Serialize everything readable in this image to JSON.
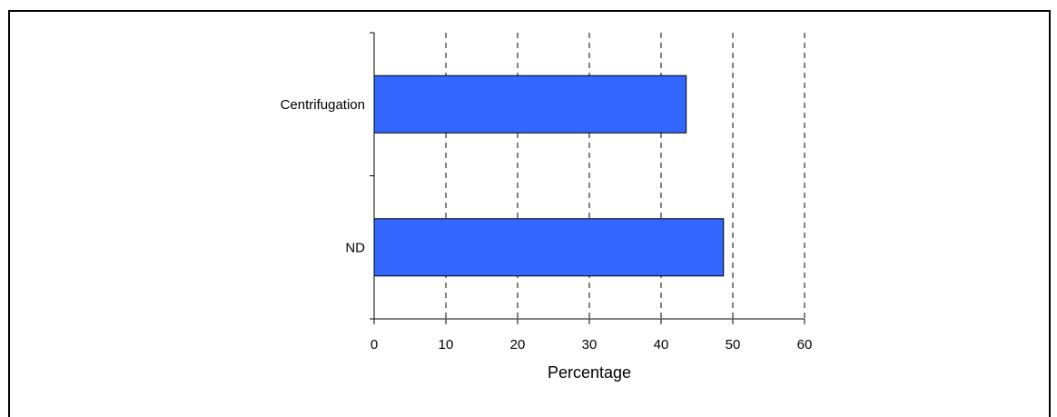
{
  "chart_data": {
    "type": "bar",
    "orientation": "horizontal",
    "categories": [
      "Centrifugation",
      "ND"
    ],
    "values": [
      43.5,
      48.7
    ],
    "xlabel": "Percentage",
    "ylabel": "",
    "xlim": [
      0,
      60
    ],
    "xticks": [
      "0",
      "10",
      "20",
      "30",
      "40",
      "50",
      "60"
    ],
    "grid": "vertical dashed",
    "legend": "none",
    "bar_color": "#3366FF"
  }
}
